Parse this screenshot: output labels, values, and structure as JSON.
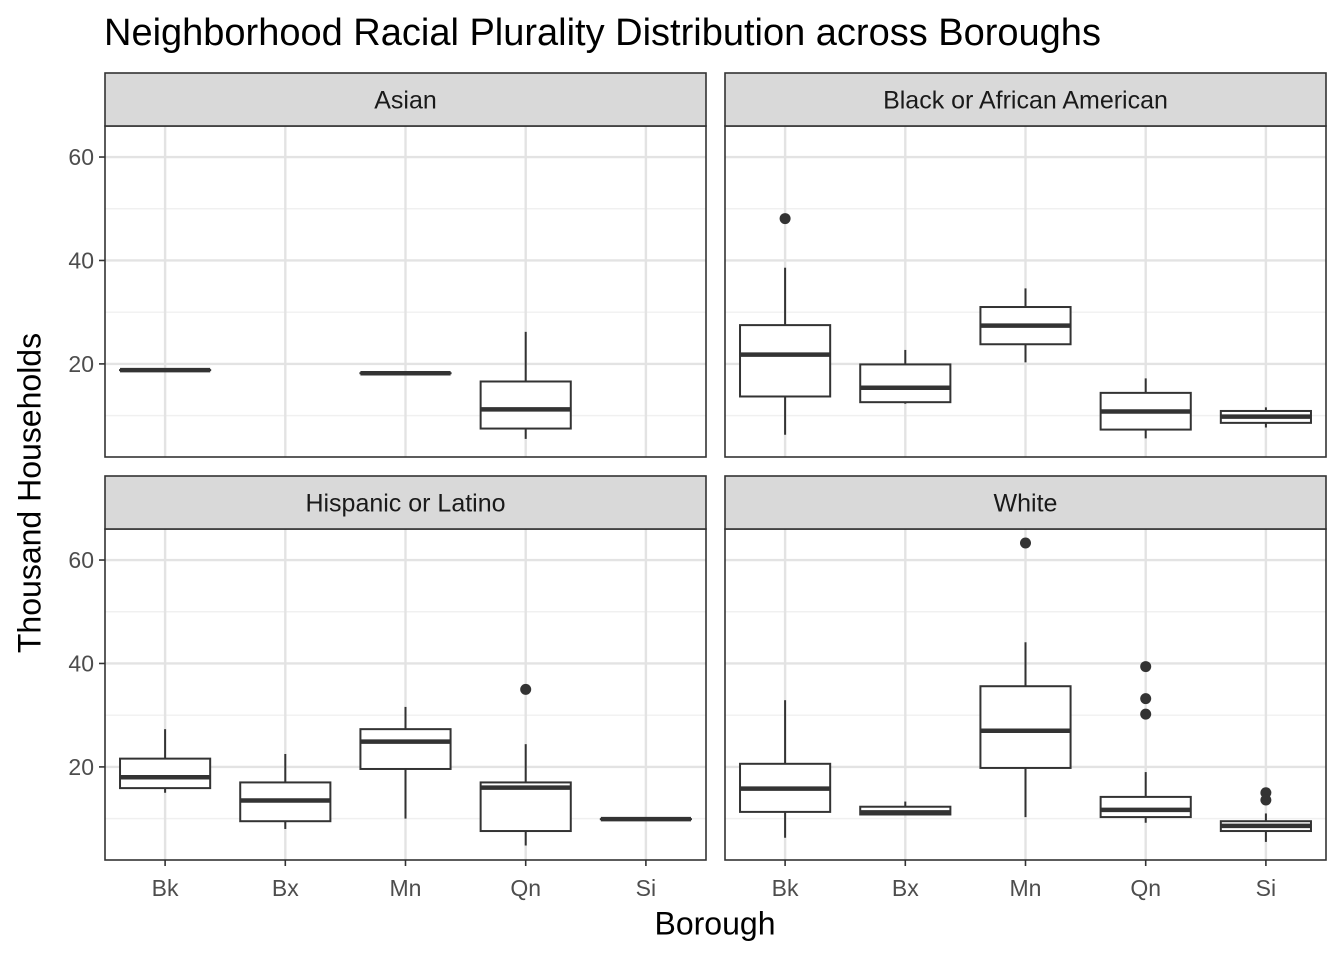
{
  "chart_data": {
    "type": "boxplot",
    "title": "Neighborhood Racial Plurality Distribution across Boroughs",
    "xlabel": "Borough",
    "ylabel": "Thousand Households",
    "categories": [
      "Bk",
      "Bx",
      "Mn",
      "Qn",
      "Si"
    ],
    "ylim": [
      2,
      66
    ],
    "yticks": [
      20,
      40,
      60
    ],
    "grid": true,
    "facets": [
      {
        "label": "Asian",
        "boxes": [
          {
            "x": "Bk",
            "min": 18.8,
            "q1": 18.8,
            "median": 18.8,
            "q3": 18.8,
            "max": 18.8,
            "outliers": []
          },
          {
            "x": "Mn",
            "min": 18.2,
            "q1": 18.2,
            "median": 18.2,
            "q3": 18.2,
            "max": 18.2,
            "outliers": []
          },
          {
            "x": "Qn",
            "min": 5.5,
            "q1": 7.5,
            "median": 11.2,
            "q3": 16.6,
            "max": 26.2,
            "outliers": []
          }
        ]
      },
      {
        "label": "Black or African American",
        "boxes": [
          {
            "x": "Bk",
            "min": 6.3,
            "q1": 13.7,
            "median": 21.8,
            "q3": 27.5,
            "max": 38.6,
            "outliers": [
              48.1
            ]
          },
          {
            "x": "Bx",
            "min": 12.3,
            "q1": 12.6,
            "median": 15.4,
            "q3": 19.9,
            "max": 22.7,
            "outliers": []
          },
          {
            "x": "Mn",
            "min": 20.3,
            "q1": 23.8,
            "median": 27.4,
            "q3": 31.0,
            "max": 34.6,
            "outliers": []
          },
          {
            "x": "Qn",
            "min": 5.6,
            "q1": 7.3,
            "median": 10.8,
            "q3": 14.4,
            "max": 17.2,
            "outliers": []
          },
          {
            "x": "Si",
            "min": 7.7,
            "q1": 8.6,
            "median": 9.8,
            "q3": 10.9,
            "max": 11.6,
            "outliers": []
          }
        ]
      },
      {
        "label": "Hispanic or Latino",
        "boxes": [
          {
            "x": "Bk",
            "min": 15.0,
            "q1": 15.9,
            "median": 18.0,
            "q3": 21.6,
            "max": 27.3,
            "outliers": []
          },
          {
            "x": "Bx",
            "min": 8.0,
            "q1": 9.5,
            "median": 13.5,
            "q3": 17.0,
            "max": 22.5,
            "outliers": []
          },
          {
            "x": "Mn",
            "min": 10.0,
            "q1": 19.6,
            "median": 24.9,
            "q3": 27.3,
            "max": 31.6,
            "outliers": []
          },
          {
            "x": "Qn",
            "min": 4.8,
            "q1": 7.6,
            "median": 16.0,
            "q3": 17.0,
            "max": 24.4,
            "outliers": [
              35.0
            ]
          },
          {
            "x": "Si",
            "min": 9.9,
            "q1": 9.9,
            "median": 9.9,
            "q3": 9.9,
            "max": 9.9,
            "outliers": []
          }
        ]
      },
      {
        "label": "White",
        "boxes": [
          {
            "x": "Bk",
            "min": 6.3,
            "q1": 11.3,
            "median": 15.8,
            "q3": 20.6,
            "max": 32.9,
            "outliers": []
          },
          {
            "x": "Bx",
            "min": 10.7,
            "q1": 10.8,
            "median": 11.2,
            "q3": 12.3,
            "max": 13.3,
            "outliers": []
          },
          {
            "x": "Mn",
            "min": 10.3,
            "q1": 19.8,
            "median": 27.0,
            "q3": 35.6,
            "max": 44.1,
            "outliers": [
              63.3
            ]
          },
          {
            "x": "Qn",
            "min": 9.2,
            "q1": 10.3,
            "median": 11.7,
            "q3": 14.2,
            "max": 19.0,
            "outliers": [
              39.4,
              33.2,
              30.2
            ]
          },
          {
            "x": "Si",
            "min": 5.5,
            "q1": 7.6,
            "median": 8.6,
            "q3": 9.5,
            "max": 11.0,
            "outliers": [
              15.0,
              13.6
            ]
          }
        ]
      }
    ]
  }
}
